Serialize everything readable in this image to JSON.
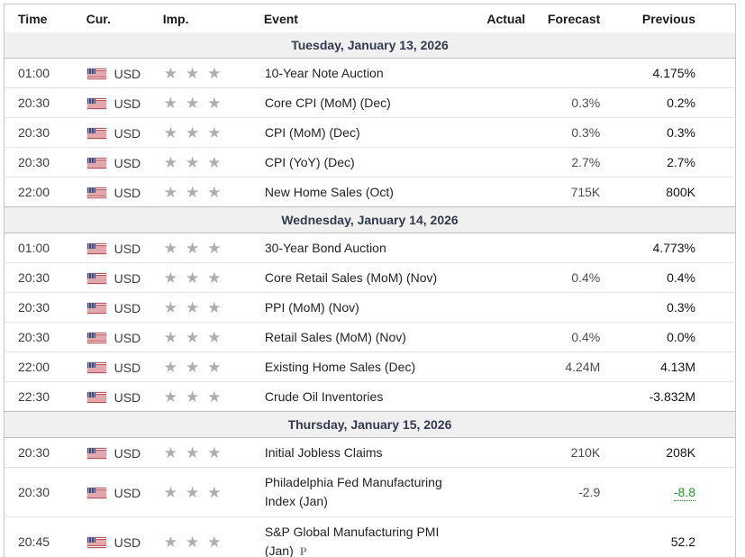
{
  "columns": {
    "time": "Time",
    "currency": "Cur.",
    "importance": "Imp.",
    "event": "Event",
    "actual": "Actual",
    "forecast": "Forecast",
    "previous": "Previous"
  },
  "icons": {
    "star": "★",
    "preliminary": "P",
    "flag_country": "US"
  },
  "colors": {
    "revised_green": "#18a118",
    "day_header_bg": "#f0f0f0",
    "day_header_text": "#333a4d",
    "star_gray": "#aeaeae"
  },
  "sections": [
    {
      "day": "Tuesday, January 13, 2026",
      "rows": [
        {
          "time": "01:00",
          "currency": "USD",
          "importance": 3,
          "event": "10-Year Note Auction",
          "actual": "",
          "forecast": "",
          "previous": "4.175%"
        },
        {
          "time": "20:30",
          "currency": "USD",
          "importance": 3,
          "event": "Core CPI (MoM) (Dec)",
          "actual": "",
          "forecast": "0.3%",
          "previous": "0.2%"
        },
        {
          "time": "20:30",
          "currency": "USD",
          "importance": 3,
          "event": "CPI (MoM) (Dec)",
          "actual": "",
          "forecast": "0.3%",
          "previous": "0.3%"
        },
        {
          "time": "20:30",
          "currency": "USD",
          "importance": 3,
          "event": "CPI (YoY) (Dec)",
          "actual": "",
          "forecast": "2.7%",
          "previous": "2.7%"
        },
        {
          "time": "22:00",
          "currency": "USD",
          "importance": 3,
          "event": "New Home Sales (Oct)",
          "actual": "",
          "forecast": "715K",
          "previous": "800K"
        }
      ]
    },
    {
      "day": "Wednesday, January 14, 2026",
      "rows": [
        {
          "time": "01:00",
          "currency": "USD",
          "importance": 3,
          "event": "30-Year Bond Auction",
          "actual": "",
          "forecast": "",
          "previous": "4.773%"
        },
        {
          "time": "20:30",
          "currency": "USD",
          "importance": 3,
          "event": "Core Retail Sales (MoM) (Nov)",
          "actual": "",
          "forecast": "0.4%",
          "previous": "0.4%"
        },
        {
          "time": "20:30",
          "currency": "USD",
          "importance": 3,
          "event": "PPI (MoM) (Nov)",
          "actual": "",
          "forecast": "",
          "previous": "0.3%"
        },
        {
          "time": "20:30",
          "currency": "USD",
          "importance": 3,
          "event": "Retail Sales (MoM) (Nov)",
          "actual": "",
          "forecast": "0.4%",
          "previous": "0.0%"
        },
        {
          "time": "22:00",
          "currency": "USD",
          "importance": 3,
          "event": "Existing Home Sales (Dec)",
          "actual": "",
          "forecast": "4.24M",
          "previous": "4.13M"
        },
        {
          "time": "22:30",
          "currency": "USD",
          "importance": 3,
          "event": "Crude Oil Inventories",
          "actual": "",
          "forecast": "",
          "previous": "-3.832M"
        }
      ]
    },
    {
      "day": "Thursday, January 15, 2026",
      "rows": [
        {
          "time": "20:30",
          "currency": "USD",
          "importance": 3,
          "event": "Initial Jobless Claims",
          "actual": "",
          "forecast": "210K",
          "previous": "208K"
        },
        {
          "time": "20:30",
          "currency": "USD",
          "importance": 3,
          "event": "Philadelphia Fed Manufacturing Index (Jan)",
          "actual": "",
          "forecast": "-2.9",
          "previous": "-8.8",
          "previous_revised": true
        },
        {
          "time": "20:45",
          "currency": "USD",
          "importance": 3,
          "event": "S&P Global Manufacturing PMI (Jan)",
          "actual": "",
          "forecast": "",
          "previous": "52.2",
          "preliminary": true
        }
      ]
    }
  ]
}
